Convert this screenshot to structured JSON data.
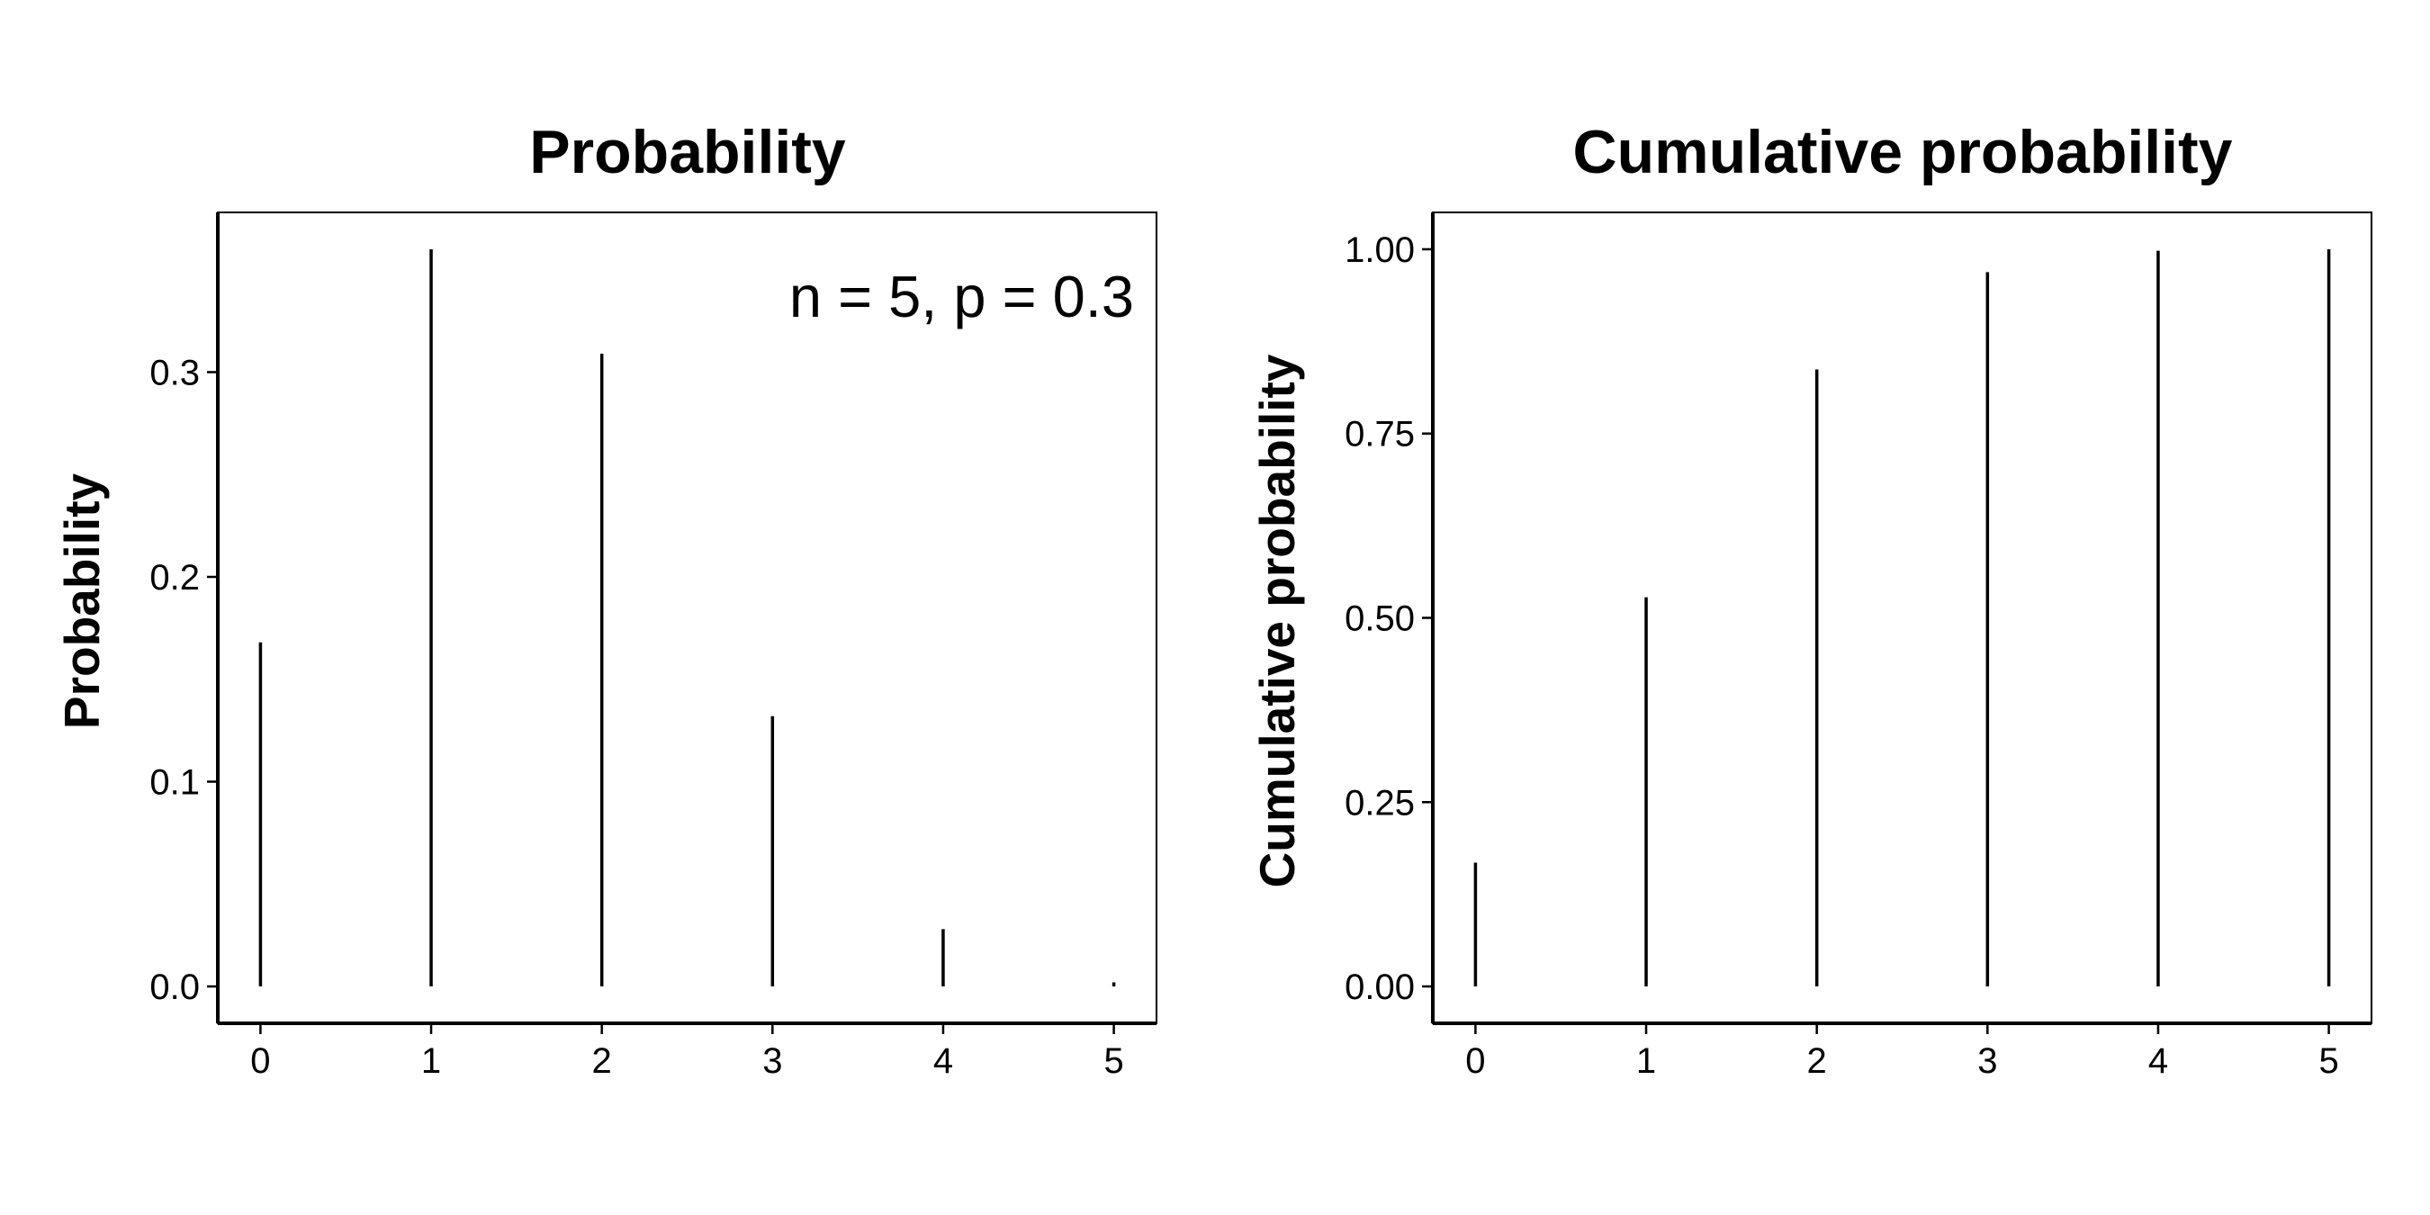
{
  "chart_data": [
    {
      "type": "bar",
      "style": "spike",
      "title": "Probability",
      "xlabel": "",
      "ylabel": "Probability",
      "annotation": "n = 5, p = 0.3",
      "annotation_position": "top-right",
      "x": [
        0,
        1,
        2,
        3,
        4,
        5
      ],
      "values": [
        0.168,
        0.36,
        0.309,
        0.132,
        0.028,
        0.002
      ],
      "xlim": [
        -0.25,
        5.25
      ],
      "ylim": [
        -0.018,
        0.378
      ],
      "xticks": [
        0,
        1,
        2,
        3,
        4,
        5
      ],
      "xtick_labels": [
        "0",
        "1",
        "2",
        "3",
        "4",
        "5"
      ],
      "yticks": [
        0.0,
        0.1,
        0.2,
        0.3
      ],
      "ytick_labels": [
        "0.0",
        "0.1",
        "0.2",
        "0.3"
      ],
      "grid": false,
      "legend": "none"
    },
    {
      "type": "bar",
      "style": "spike",
      "title": "Cumulative probability",
      "xlabel": "",
      "ylabel": "Cumulative probability",
      "x": [
        0,
        1,
        2,
        3,
        4,
        5
      ],
      "values": [
        0.168,
        0.528,
        0.837,
        0.969,
        0.998,
        1.0
      ],
      "xlim": [
        -0.25,
        5.25
      ],
      "ylim": [
        -0.05,
        1.05
      ],
      "xticks": [
        0,
        1,
        2,
        3,
        4,
        5
      ],
      "xtick_labels": [
        "0",
        "1",
        "2",
        "3",
        "4",
        "5"
      ],
      "yticks": [
        0.0,
        0.25,
        0.5,
        0.75,
        1.0
      ],
      "ytick_labels": [
        "0.00",
        "0.25",
        "0.50",
        "0.75",
        "1.00"
      ],
      "grid": false,
      "legend": "none"
    }
  ]
}
